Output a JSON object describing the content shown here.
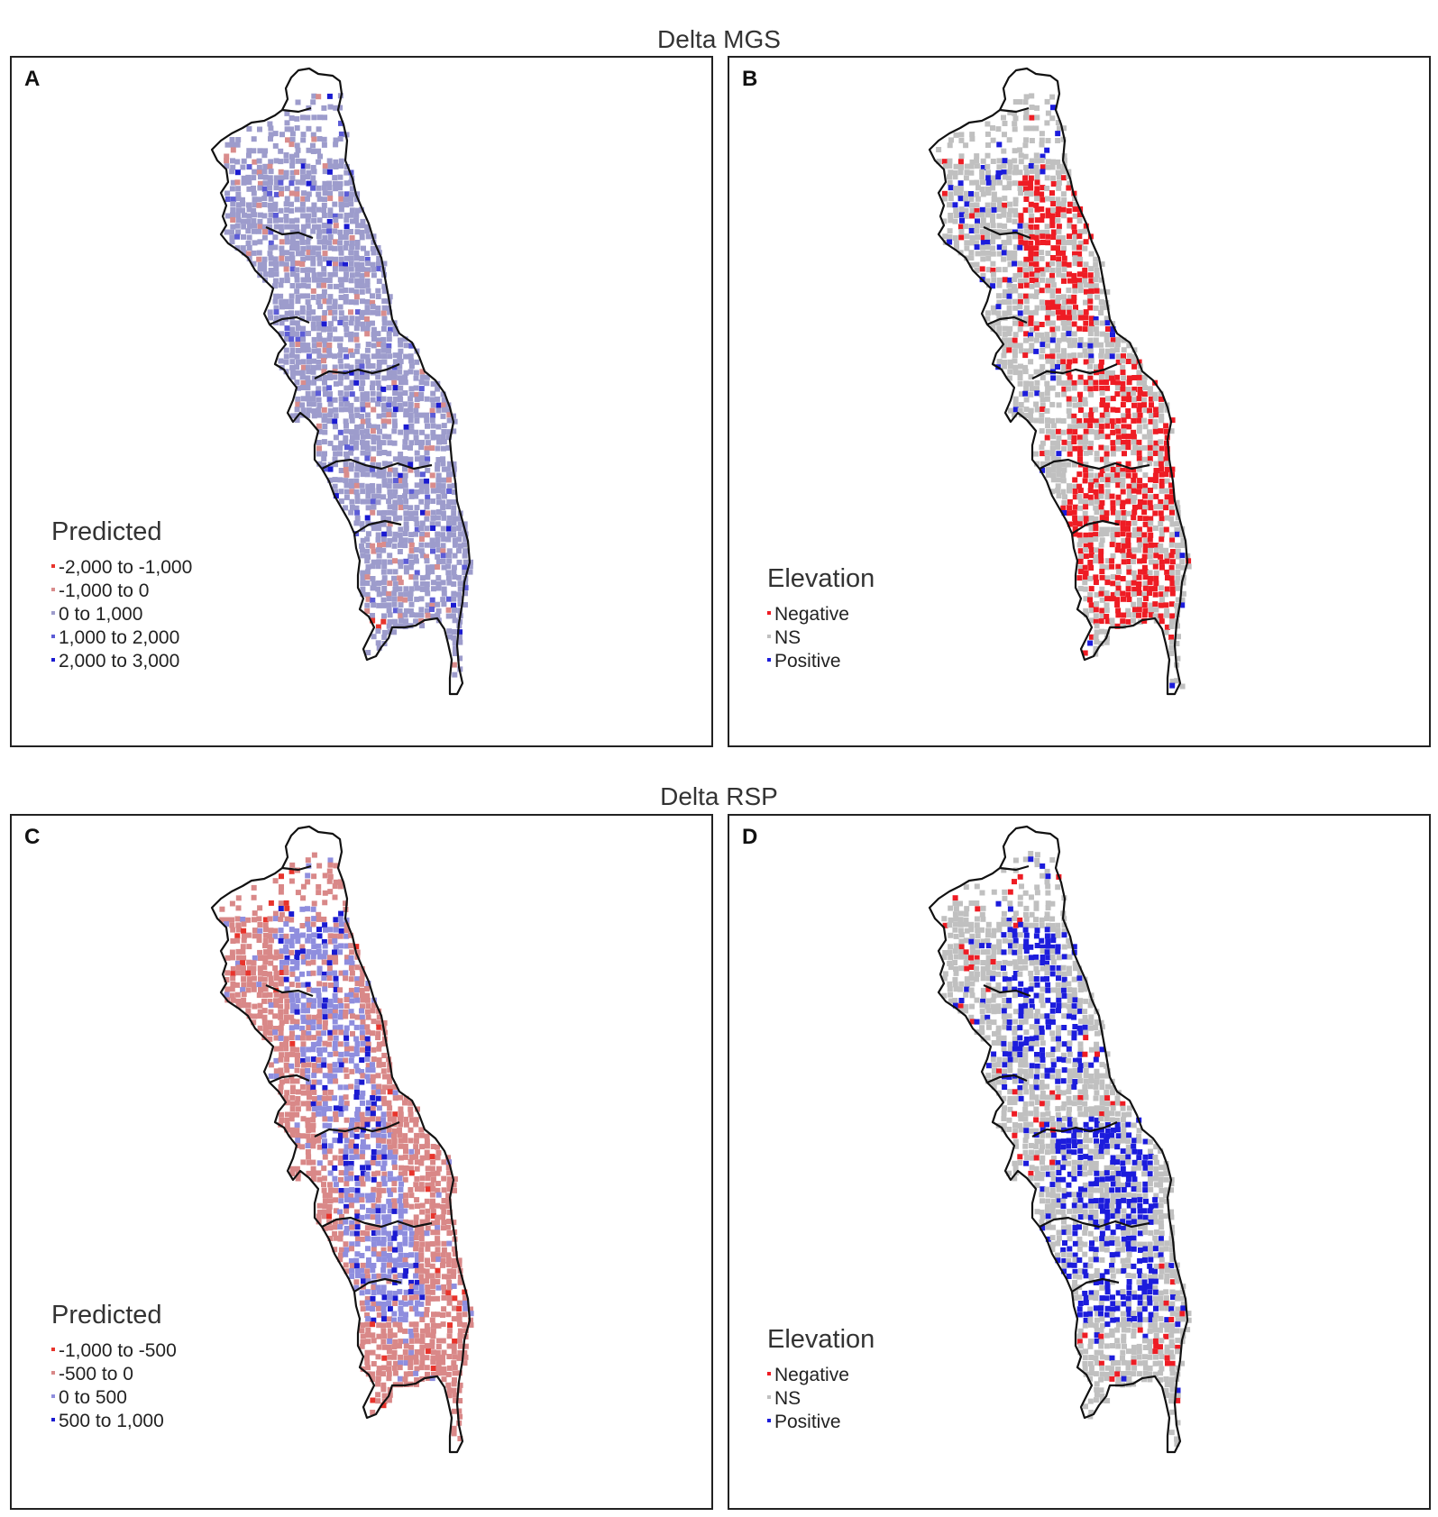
{
  "rows": [
    {
      "title": "Delta MGS"
    },
    {
      "title": "Delta RSP"
    }
  ],
  "panels": [
    {
      "letter": "A",
      "scheme": "predicted",
      "legend": {
        "title": "Predicted",
        "items": [
          {
            "label": "-2,000 to -1,000",
            "color": "#e8342c"
          },
          {
            "label": "-1,000 to 0",
            "color": "#d98c8c"
          },
          {
            "label": "0 to 1,000",
            "color": "#9d9ccc"
          },
          {
            "label": "1,000 to 2,000",
            "color": "#5c5cd6"
          },
          {
            "label": "2,000 to 3,000",
            "color": "#1a1ad1"
          }
        ]
      }
    },
    {
      "letter": "B",
      "scheme": "elevation",
      "legend": {
        "title": "Elevation",
        "items": [
          {
            "label": "Negative",
            "color": "#ee1c24"
          },
          {
            "label": "NS",
            "color": "#c0c0c0"
          },
          {
            "label": "Positive",
            "color": "#1c1cdc"
          }
        ]
      }
    },
    {
      "letter": "C",
      "scheme": "predicted",
      "legend": {
        "title": "Predicted",
        "items": [
          {
            "label": "-1,000 to -500",
            "color": "#e8342c"
          },
          {
            "label": "-500 to 0",
            "color": "#d98888"
          },
          {
            "label": "0 to 500",
            "color": "#8f8ede"
          },
          {
            "label": "500 to 1,000",
            "color": "#1a1ad1"
          }
        ]
      }
    },
    {
      "letter": "D",
      "scheme": "elevation",
      "legend": {
        "title": "Elevation",
        "items": [
          {
            "label": "Negative",
            "color": "#ee1c24"
          },
          {
            "label": "NS",
            "color": "#c0c0c0"
          },
          {
            "label": "Positive",
            "color": "#1c1cdc"
          }
        ]
      }
    }
  ]
}
